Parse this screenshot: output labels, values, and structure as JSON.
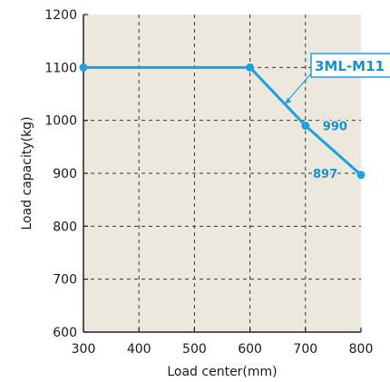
{
  "chart_data": {
    "type": "line",
    "xlabel": "Load center(mm)",
    "ylabel": "Load capacity(kg)",
    "xlim": [
      300,
      800
    ],
    "ylim": [
      600,
      1200
    ],
    "xticks": [
      300,
      400,
      500,
      600,
      700,
      800
    ],
    "yticks": [
      600,
      700,
      800,
      900,
      1000,
      1100,
      1200
    ],
    "grid": true,
    "series": [
      {
        "name": "3ML-M11",
        "x": [
          300,
          600,
          700,
          800
        ],
        "y": [
          1100,
          1100,
          990,
          897
        ]
      }
    ],
    "point_labels": [
      {
        "x": 700,
        "y": 990,
        "text": "990"
      },
      {
        "x": 800,
        "y": 897,
        "text": "897"
      }
    ]
  },
  "colors": {
    "plot_background": "#ede8dd",
    "series": "#1ba1e2",
    "label_text": "#1a8fd0",
    "grid": "#333333",
    "axis": "#222222",
    "label_box_background": "#ffffff"
  }
}
